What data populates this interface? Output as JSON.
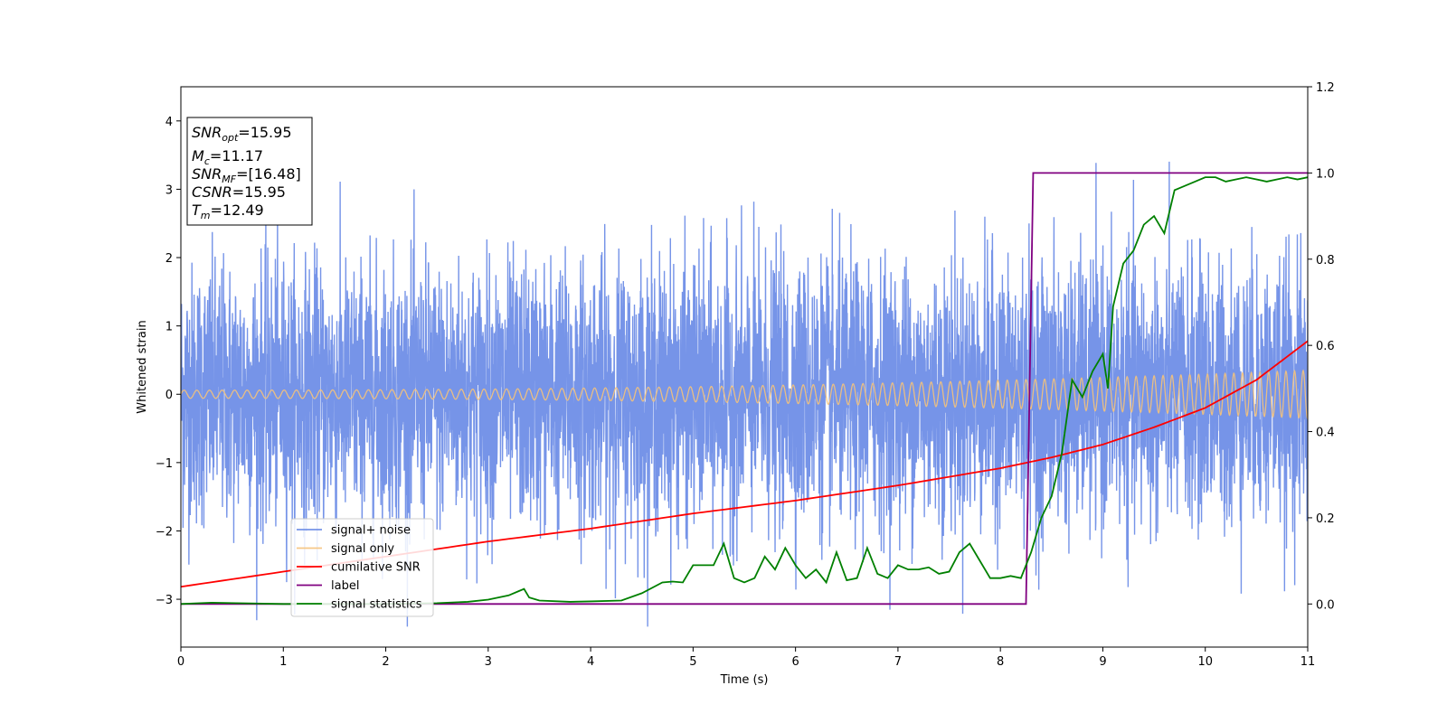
{
  "chart_data": {
    "type": "line",
    "xlabel": "Time (s)",
    "ylabel": "Whitened strain",
    "xlim": [
      0,
      11
    ],
    "ylim": [
      -3.7,
      4.5
    ],
    "y2lim": [
      -0.1,
      1.2
    ],
    "x_ticks": [
      "0",
      "1",
      "2",
      "3",
      "4",
      "5",
      "6",
      "7",
      "8",
      "9",
      "10",
      "11"
    ],
    "y_ticks": [
      "−3",
      "−2",
      "−1",
      "0",
      "1",
      "2",
      "3",
      "4"
    ],
    "y2_ticks": [
      "0.0",
      "0.2",
      "0.4",
      "0.6",
      "0.8",
      "1.0",
      "1.2"
    ],
    "legend_position": "lower-left",
    "colors": {
      "signal_noise": "#6a8be6",
      "signal_only": "#f5c27a",
      "cumulative_snr": "#ff0000",
      "label": "#800080",
      "signal_statistics": "#008000"
    },
    "annotation": {
      "snr_opt": {
        "base": "SNR",
        "sub": "opt",
        "value": "=15.95"
      },
      "mc": {
        "base": "M",
        "sub": "c",
        "value": "=11.17"
      },
      "snr_mf": {
        "base": "SNR",
        "sub": "MF",
        "value": "=[16.48]"
      },
      "csnr": {
        "base": "CSNR",
        "value": "=15.95"
      },
      "tm": {
        "base": "T",
        "sub": "m",
        "value": "=12.49"
      }
    },
    "series": [
      {
        "name": "signal+ noise",
        "axis": "left",
        "envelope_sigma": 0.95
      },
      {
        "name": "signal only",
        "axis": "left",
        "amplitude_start": 0.06,
        "amplitude_end": 0.35
      },
      {
        "name": "cumilative SNR",
        "axis": "right",
        "x": [
          0,
          1,
          2,
          3,
          4,
          5,
          6,
          7,
          8,
          8.5,
          9,
          9.5,
          10,
          10.5,
          11
        ],
        "y": [
          0.04,
          0.075,
          0.11,
          0.145,
          0.175,
          0.21,
          0.24,
          0.275,
          0.315,
          0.34,
          0.37,
          0.41,
          0.455,
          0.52,
          0.61
        ]
      },
      {
        "name": "label",
        "axis": "right",
        "x": [
          0,
          8.25,
          8.32,
          11
        ],
        "y": [
          0,
          0,
          1,
          1
        ]
      },
      {
        "name": "signal statistics",
        "axis": "right",
        "x": [
          0,
          0.3,
          1,
          2,
          2.5,
          2.8,
          3.0,
          3.2,
          3.3,
          3.35,
          3.4,
          3.5,
          3.8,
          4.0,
          4.3,
          4.5,
          4.7,
          4.8,
          4.9,
          5.0,
          5.1,
          5.2,
          5.3,
          5.4,
          5.5,
          5.6,
          5.7,
          5.8,
          5.9,
          6.0,
          6.1,
          6.2,
          6.3,
          6.4,
          6.5,
          6.6,
          6.7,
          6.8,
          6.9,
          7.0,
          7.1,
          7.2,
          7.3,
          7.4,
          7.5,
          7.6,
          7.7,
          7.8,
          7.9,
          8.0,
          8.1,
          8.2,
          8.3,
          8.4,
          8.5,
          8.6,
          8.7,
          8.8,
          8.9,
          9.0,
          9.05,
          9.1,
          9.2,
          9.3,
          9.4,
          9.5,
          9.6,
          9.7,
          9.8,
          9.9,
          10.0,
          10.1,
          10.2,
          10.3,
          10.4,
          10.5,
          10.6,
          10.7,
          10.8,
          10.9,
          11.0
        ],
        "y": [
          0,
          0.003,
          0.0,
          0.0,
          0.002,
          0.005,
          0.01,
          0.02,
          0.03,
          0.035,
          0.015,
          0.008,
          0.005,
          0.006,
          0.008,
          0.025,
          0.05,
          0.052,
          0.05,
          0.09,
          0.09,
          0.09,
          0.14,
          0.06,
          0.05,
          0.06,
          0.11,
          0.08,
          0.13,
          0.09,
          0.06,
          0.08,
          0.05,
          0.12,
          0.055,
          0.06,
          0.13,
          0.07,
          0.06,
          0.09,
          0.08,
          0.08,
          0.085,
          0.07,
          0.075,
          0.12,
          0.14,
          0.1,
          0.06,
          0.06,
          0.065,
          0.06,
          0.12,
          0.2,
          0.25,
          0.35,
          0.52,
          0.48,
          0.54,
          0.58,
          0.5,
          0.69,
          0.79,
          0.82,
          0.88,
          0.9,
          0.86,
          0.96,
          0.97,
          0.98,
          0.99,
          0.99,
          0.98,
          0.985,
          0.99,
          0.985,
          0.98,
          0.985,
          0.99,
          0.985,
          0.99
        ]
      }
    ]
  }
}
